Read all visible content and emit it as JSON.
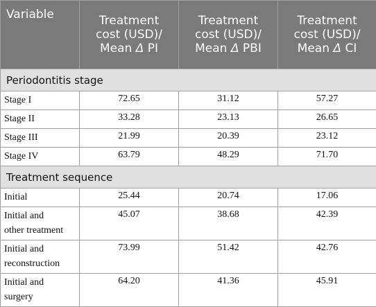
{
  "table": {
    "headers": [
      "Variable",
      [
        "Treatment",
        "cost (USD)/",
        "Mean",
        "PI"
      ],
      [
        "Treatment",
        "cost (USD)/",
        "Mean",
        "PBI"
      ],
      [
        "Treatment",
        "cost (USD)/",
        "Mean",
        "CI"
      ]
    ],
    "delta_symbol": "Δ",
    "sections": [
      {
        "title": "Periodontitis stage",
        "rows": [
          {
            "label": [
              "Stage I"
            ],
            "values": [
              "72.65",
              "31.12",
              "57.27"
            ]
          },
          {
            "label": [
              "Stage II"
            ],
            "values": [
              "33.28",
              "23.13",
              "26.65"
            ]
          },
          {
            "label": [
              "Stage III"
            ],
            "values": [
              "21.99",
              "20.39",
              "23.12"
            ]
          },
          {
            "label": [
              "Stage IV"
            ],
            "values": [
              "63.79",
              "48.29",
              "71.70"
            ]
          }
        ]
      },
      {
        "title": "Treatment sequence",
        "rows": [
          {
            "label": [
              "Initial"
            ],
            "values": [
              "25.44",
              "20.74",
              "17.06"
            ]
          },
          {
            "label": [
              "Initial and",
              "other treatment"
            ],
            "values": [
              "45.07",
              "38.68",
              "42.39"
            ]
          },
          {
            "label": [
              "Initial and",
              "reconstruction"
            ],
            "values": [
              "73.99",
              "51.42",
              "42.76"
            ]
          },
          {
            "label": [
              "Initial and",
              "surgery"
            ],
            "values": [
              "64.20",
              "41.36",
              "45.91"
            ]
          }
        ]
      }
    ]
  }
}
